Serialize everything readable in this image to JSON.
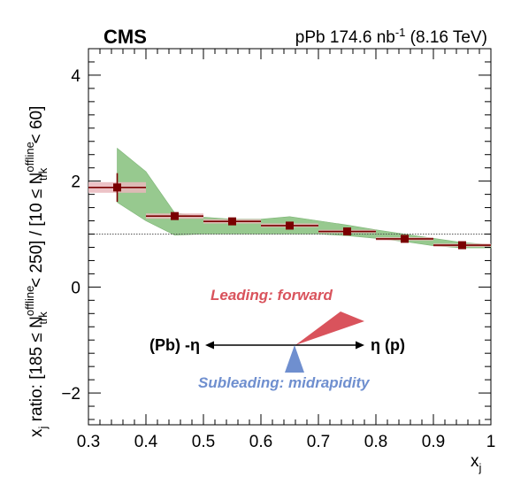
{
  "chart_data": {
    "type": "scatter",
    "experiment_label": "CMS",
    "lumi_label": {
      "prefix": "pPb 174.6 nb",
      "exponent": "-1",
      "suffix": " (8.16 TeV)"
    },
    "xlabel": {
      "main": "x",
      "sub": "j"
    },
    "ylabel": {
      "p1": "x",
      "p1_sub": "j",
      "p2": " ratio: [185 ≤ N",
      "p2_sup": "offline",
      "p2_sub": "trk",
      "p3": " < 250] / [10 ≤ N",
      "p3_sup": "offline",
      "p3_sub": "trk",
      "p4": " < 60]"
    },
    "xlim": [
      0.3,
      1.0
    ],
    "ylim": [
      -2.6,
      4.5
    ],
    "x_ticks": [
      "0.3",
      "0.4",
      "0.5",
      "0.6",
      "0.7",
      "0.8",
      "0.9",
      "1"
    ],
    "y_ticks": [
      "−2",
      "0",
      "2",
      "4"
    ],
    "reference_line": 1.0,
    "series": [
      {
        "points": [
          {
            "x": 0.35,
            "y": 1.88,
            "xerr": 0.05,
            "yerr": 0.27,
            "syst_lo": 1.78,
            "syst_hi": 1.98
          },
          {
            "x": 0.45,
            "y": 1.34,
            "xerr": 0.05,
            "yerr": 0.05,
            "syst_lo": 1.29,
            "syst_hi": 1.39
          },
          {
            "x": 0.55,
            "y": 1.24,
            "xerr": 0.05,
            "yerr": 0.04,
            "syst_lo": 1.2,
            "syst_hi": 1.28
          },
          {
            "x": 0.65,
            "y": 1.16,
            "xerr": 0.05,
            "yerr": 0.04,
            "syst_lo": 1.13,
            "syst_hi": 1.2
          },
          {
            "x": 0.75,
            "y": 1.05,
            "xerr": 0.05,
            "yerr": 0.03,
            "syst_lo": 1.02,
            "syst_hi": 1.08
          },
          {
            "x": 0.85,
            "y": 0.91,
            "xerr": 0.05,
            "yerr": 0.03,
            "syst_lo": 0.88,
            "syst_hi": 0.94
          },
          {
            "x": 0.95,
            "y": 0.79,
            "xerr": 0.05,
            "yerr": 0.03,
            "syst_lo": 0.76,
            "syst_hi": 0.82
          }
        ]
      }
    ],
    "model_band": {
      "x": [
        0.35,
        0.4,
        0.45,
        0.5,
        0.55,
        0.6,
        0.65,
        0.7,
        0.75,
        0.8,
        0.85,
        0.9,
        0.95,
        1.0
      ],
      "lo": [
        1.6,
        1.25,
        0.98,
        1.0,
        1.0,
        1.0,
        1.0,
        1.0,
        0.97,
        0.92,
        0.86,
        0.78,
        0.74,
        0.74
      ],
      "hi": [
        2.62,
        2.18,
        1.4,
        1.32,
        1.28,
        1.28,
        1.33,
        1.25,
        1.17,
        1.08,
        1.0,
        0.92,
        0.84,
        0.8
      ]
    },
    "colors": {
      "marker": "#7a0000",
      "syst_box": "#e9b7bc",
      "model_band": "#97c98f",
      "model_band_edge": "#7eb577",
      "leading_arrow": "#d9535c",
      "subleading_arrow": "#6f8fcf",
      "reference_line": "#555555"
    },
    "inset": {
      "leading_label": "Leading: forward",
      "subleading_label": "Subleading: midrapidity",
      "left_label": "(Pb) -η",
      "right_label": "η (p)"
    }
  }
}
